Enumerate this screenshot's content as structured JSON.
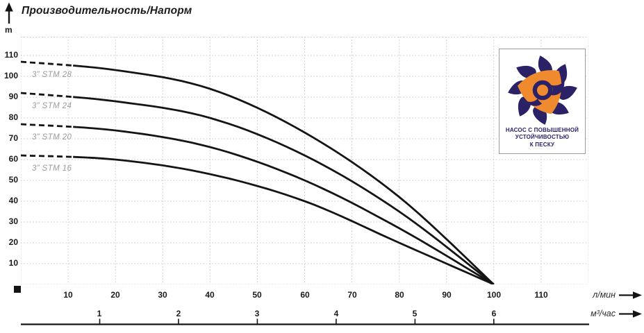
{
  "header": {
    "title": "Производительность/Напорм",
    "y_unit": "m"
  },
  "axes": {
    "x1_unit": "л/мин",
    "x2_unit": "м³/час",
    "x1_ticks": [
      10,
      20,
      30,
      40,
      50,
      60,
      70,
      80,
      90,
      100,
      110
    ],
    "x2_ticks": [
      1,
      2,
      3,
      4,
      5,
      6
    ],
    "y_ticks": [
      10,
      20,
      30,
      40,
      50,
      60,
      70,
      80,
      90,
      100,
      110
    ]
  },
  "badge": {
    "line1": "НАСОС С ПОВЫШЕННОЙ",
    "line2": "УСТОЙЧИВОСТЬЮ",
    "line3": "К ПЕСКУ"
  },
  "colors": {
    "curve": "#141414",
    "grid": "#c9c9c9",
    "curve_label": "#9b9b9b",
    "badge_navy": "#2a2167",
    "badge_orange": "#ef8a2f"
  },
  "chart_data": {
    "type": "line",
    "title": "Производительность/Напорм",
    "ylabel": "m",
    "xlabel": "л/мин",
    "xlabel_secondary": "м³/час",
    "x": [
      0,
      20,
      40,
      60,
      80,
      100
    ],
    "series": [
      {
        "name": "3” STM 28",
        "values": [
          107,
          103,
          94,
          73,
          42,
          0
        ]
      },
      {
        "name": "3” STM 24",
        "values": [
          92,
          88,
          80,
          62,
          35,
          0
        ]
      },
      {
        "name": "3” STM 20",
        "values": [
          77,
          74,
          66,
          50,
          27,
          0
        ]
      },
      {
        "name": "3” STM 16",
        "values": [
          62,
          60,
          53,
          40,
          20,
          0
        ]
      }
    ],
    "xlim": [
      0,
      120
    ],
    "ylim": [
      0,
      119
    ],
    "grid": true,
    "grid_step_x": 10,
    "grid_step_y": 10,
    "dashed_segment_x_range": [
      0,
      12.5
    ],
    "x2_conversion_l_min_per_unit": 16.667,
    "legend_position": "labels-under-curve-left"
  }
}
